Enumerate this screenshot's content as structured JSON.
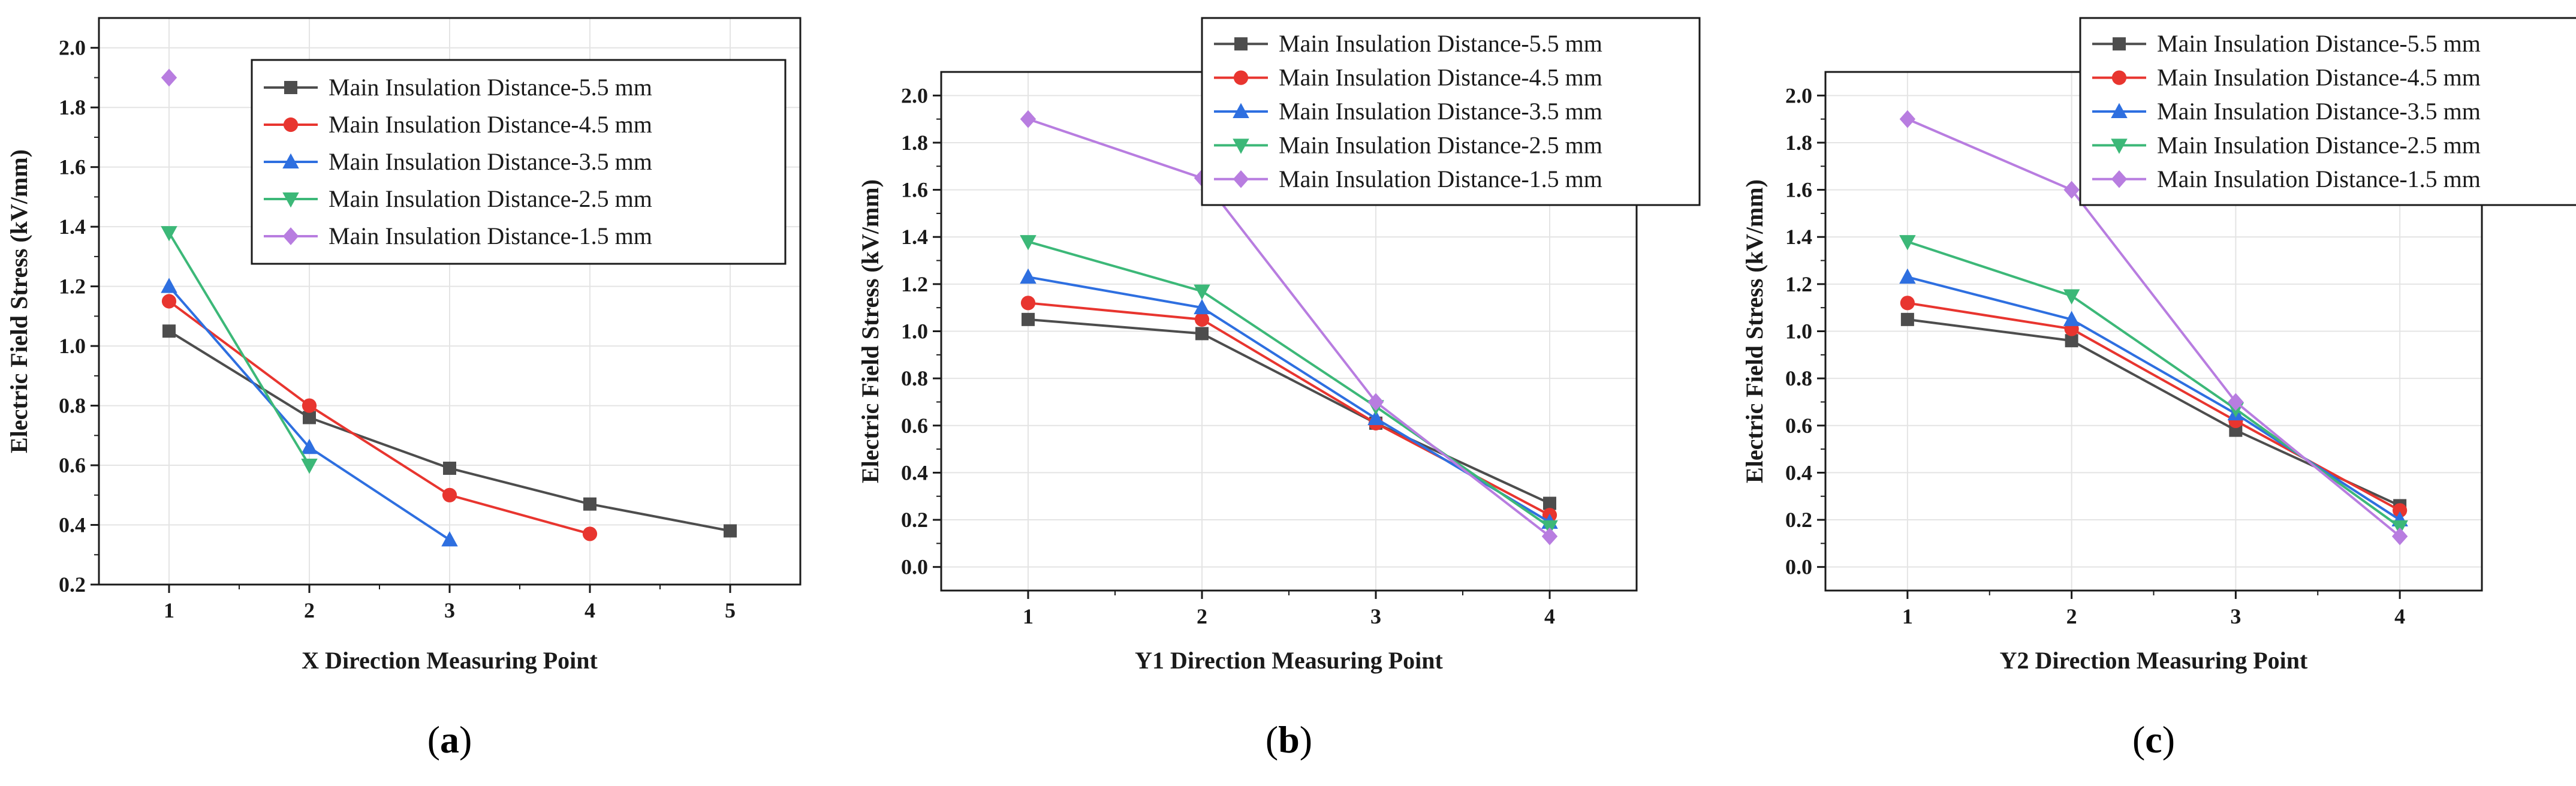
{
  "colors": {
    "series_5_5": "#4d4d4d",
    "series_4_5": "#e8352f",
    "series_3_5": "#2e6fe0",
    "series_2_5": "#3cb878",
    "series_1_5": "#b87de0",
    "grid": "#e4e4e4",
    "axis": "#1a1a1a"
  },
  "chart_data": [
    {
      "type": "line",
      "panel": "a",
      "caption": {
        "open": "(",
        "letter": "a",
        "close": ")"
      },
      "xlabel": "X Direction Measuring Point",
      "ylabel": "Electric Field Stress (kV/mm)",
      "xlim": [
        0.5,
        5.5
      ],
      "ylim": [
        0.2,
        2.1
      ],
      "xticks": [
        1,
        2,
        3,
        4,
        5
      ],
      "yticks": [
        0.2,
        0.4,
        0.6,
        0.8,
        1.0,
        1.2,
        1.4,
        1.6,
        1.8,
        2.0
      ],
      "grid": true,
      "legend": "top-right",
      "series": [
        {
          "name": "Main Insulation Distance-5.5 mm",
          "marker": "square",
          "x": [
            1,
            2,
            3,
            4,
            5
          ],
          "values": [
            1.05,
            0.76,
            0.59,
            0.47,
            0.38
          ]
        },
        {
          "name": "Main Insulation Distance-4.5 mm",
          "marker": "circle",
          "x": [
            1,
            2,
            3,
            4
          ],
          "values": [
            1.15,
            0.8,
            0.5,
            0.37
          ]
        },
        {
          "name": "Main Insulation Distance-3.5 mm",
          "marker": "triangle-up",
          "x": [
            1,
            2,
            3
          ],
          "values": [
            1.2,
            0.66,
            0.35
          ]
        },
        {
          "name": "Main Insulation Distance-2.5 mm",
          "marker": "triangle-down",
          "x": [
            1,
            2
          ],
          "values": [
            1.38,
            0.6
          ]
        },
        {
          "name": "Main Insulation Distance-1.5 mm",
          "marker": "diamond",
          "x": [
            1
          ],
          "values": [
            1.9
          ]
        }
      ]
    },
    {
      "type": "line",
      "panel": "b",
      "caption": {
        "open": "(",
        "letter": "b",
        "close": ")"
      },
      "xlabel": "Y1 Direction Measuring Point",
      "ylabel": "Electric Field Stress (kV/mm)",
      "xlim": [
        0.5,
        4.5
      ],
      "ylim": [
        -0.1,
        2.1
      ],
      "xticks": [
        1,
        2,
        3,
        4
      ],
      "yticks": [
        0.0,
        0.2,
        0.4,
        0.6,
        0.8,
        1.0,
        1.2,
        1.4,
        1.6,
        1.8,
        2.0
      ],
      "grid": true,
      "legend": "top-right",
      "series": [
        {
          "name": "Main Insulation Distance-5.5 mm",
          "marker": "square",
          "x": [
            1,
            2,
            3,
            4
          ],
          "values": [
            1.05,
            0.99,
            0.61,
            0.27
          ]
        },
        {
          "name": "Main Insulation Distance-4.5 mm",
          "marker": "circle",
          "x": [
            1,
            2,
            3,
            4
          ],
          "values": [
            1.12,
            1.05,
            0.61,
            0.22
          ]
        },
        {
          "name": "Main Insulation Distance-3.5 mm",
          "marker": "triangle-up",
          "x": [
            1,
            2,
            3,
            4
          ],
          "values": [
            1.23,
            1.1,
            0.63,
            0.19
          ]
        },
        {
          "name": "Main Insulation Distance-2.5 mm",
          "marker": "triangle-down",
          "x": [
            1,
            2,
            3,
            4
          ],
          "values": [
            1.38,
            1.17,
            0.68,
            0.17
          ]
        },
        {
          "name": "Main Insulation Distance-1.5 mm",
          "marker": "diamond",
          "x": [
            1,
            2,
            3,
            4
          ],
          "values": [
            1.9,
            1.65,
            0.7,
            0.13
          ]
        }
      ]
    },
    {
      "type": "line",
      "panel": "c",
      "caption": {
        "open": "(",
        "letter": "c",
        "close": ")"
      },
      "xlabel": "Y2 Direction Measuring Point",
      "ylabel": "Electric Field Stress (kV/mm)",
      "xlim": [
        0.5,
        4.5
      ],
      "ylim": [
        -0.1,
        2.1
      ],
      "xticks": [
        1,
        2,
        3,
        4
      ],
      "yticks": [
        0.0,
        0.2,
        0.4,
        0.6,
        0.8,
        1.0,
        1.2,
        1.4,
        1.6,
        1.8,
        2.0
      ],
      "grid": true,
      "legend": "top-right",
      "series": [
        {
          "name": "Main Insulation Distance-5.5 mm",
          "marker": "square",
          "x": [
            1,
            2,
            3,
            4
          ],
          "values": [
            1.05,
            0.96,
            0.58,
            0.26
          ]
        },
        {
          "name": "Main Insulation Distance-4.5 mm",
          "marker": "circle",
          "x": [
            1,
            2,
            3,
            4
          ],
          "values": [
            1.12,
            1.01,
            0.62,
            0.24
          ]
        },
        {
          "name": "Main Insulation Distance-3.5 mm",
          "marker": "triangle-up",
          "x": [
            1,
            2,
            3,
            4
          ],
          "values": [
            1.23,
            1.05,
            0.65,
            0.2
          ]
        },
        {
          "name": "Main Insulation Distance-2.5 mm",
          "marker": "triangle-down",
          "x": [
            1,
            2,
            3,
            4
          ],
          "values": [
            1.38,
            1.15,
            0.67,
            0.17
          ]
        },
        {
          "name": "Main Insulation Distance-1.5 mm",
          "marker": "diamond",
          "x": [
            1,
            2,
            3,
            4
          ],
          "values": [
            1.9,
            1.6,
            0.7,
            0.13
          ]
        }
      ]
    }
  ]
}
